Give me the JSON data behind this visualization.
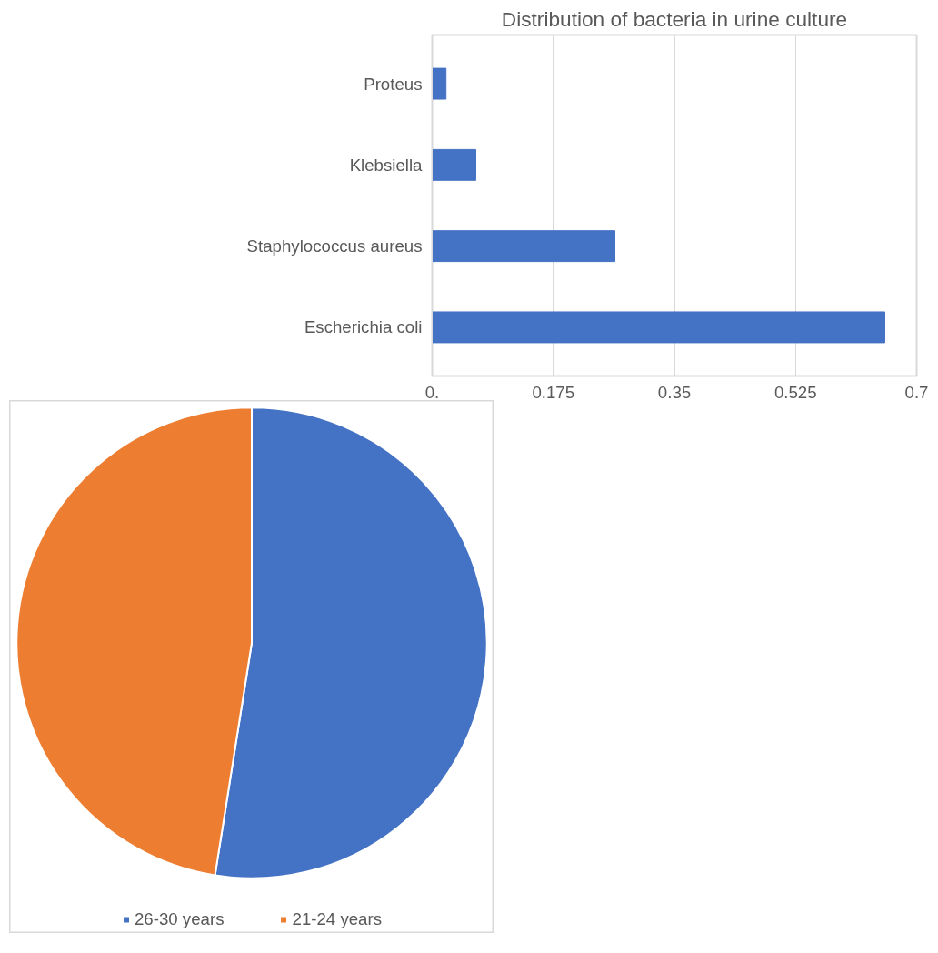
{
  "chart_data": [
    {
      "type": "bar",
      "orientation": "horizontal",
      "title": "Distribution of bacteria in urine culture",
      "categories": [
        "Proteus",
        "Klebsiella",
        "Staphylococcus aureus",
        "Escherichia coli"
      ],
      "values": [
        0.02,
        0.063,
        0.264,
        0.654
      ],
      "color": "#4472c4",
      "xlim": [
        0,
        0.7
      ],
      "xticks": [
        {
          "value": 0,
          "label": "0."
        },
        0.175,
        0.35,
        0.525,
        0.7
      ],
      "grid": "x"
    },
    {
      "type": "pie",
      "categories": [
        "26-30 years",
        "21-24 years"
      ],
      "values": [
        52.5,
        47.5
      ],
      "colors": [
        "#4472c4",
        "#ed7d31"
      ],
      "legend": "bottom"
    }
  ]
}
